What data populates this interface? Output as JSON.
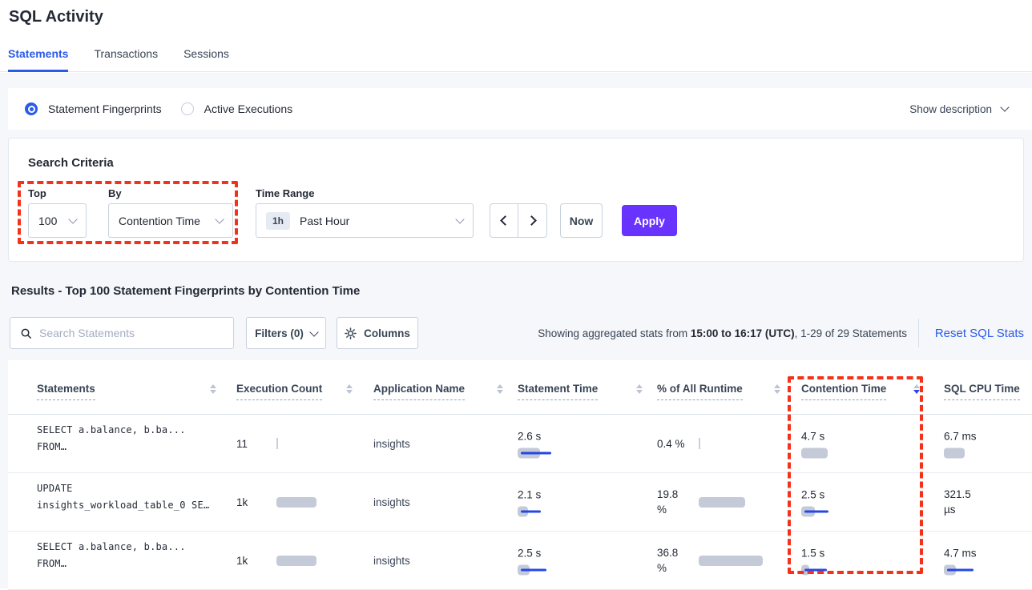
{
  "page": {
    "title": "SQL Activity"
  },
  "tabs": [
    {
      "label": "Statements",
      "active": true
    },
    {
      "label": "Transactions",
      "active": false
    },
    {
      "label": "Sessions",
      "active": false
    }
  ],
  "view_toggle": {
    "options": [
      {
        "label": "Statement Fingerprints",
        "selected": true
      },
      {
        "label": "Active Executions",
        "selected": false
      }
    ],
    "show_description": "Show description"
  },
  "search_criteria": {
    "title": "Search Criteria",
    "top": {
      "label": "Top",
      "value": "100"
    },
    "by": {
      "label": "By",
      "value": "Contention Time"
    },
    "time_range": {
      "label": "Time Range",
      "badge": "1h",
      "value": "Past Hour"
    },
    "now_label": "Now",
    "apply_label": "Apply"
  },
  "results": {
    "heading": "Results - Top 100 Statement Fingerprints by Contention Time",
    "search_placeholder": "Search Statements",
    "filters_label": "Filters (0)",
    "columns_label": "Columns",
    "stats": {
      "prefix": "Showing aggregated stats from ",
      "range": "15:00 to 16:17 (UTC)",
      "suffix": ", 1-29 of 29 Statements"
    },
    "reset_label": "Reset SQL Stats"
  },
  "table": {
    "headers": [
      {
        "label": "Statements",
        "sort": "none"
      },
      {
        "label": "Execution Count",
        "sort": "none"
      },
      {
        "label": "Application Name",
        "sort": "none"
      },
      {
        "label": "Statement Time",
        "sort": "none"
      },
      {
        "label": "% of All Runtime",
        "sort": "none"
      },
      {
        "label": "Contention Time",
        "sort": "desc"
      },
      {
        "label": "SQL CPU Time",
        "sort": null
      }
    ],
    "rows": [
      {
        "statement": [
          "SELECT a.balance, b.ba...",
          "FROM…"
        ],
        "exec_count": {
          "text": "11",
          "tick": true
        },
        "app_name": "insights",
        "statement_time": {
          "lines": [
            "2.6 s"
          ],
          "gray": 28,
          "blue": 38
        },
        "runtime_pct": {
          "lines": [
            "0.4 %"
          ],
          "tick": true
        },
        "contention_time": {
          "lines": [
            "4.7 s"
          ],
          "gray": 33,
          "blue": 0
        },
        "sql_cpu_time": {
          "lines": [
            "6.7 ms"
          ],
          "gray": 26,
          "blue": 0
        }
      },
      {
        "statement": [
          "UPDATE",
          "insights_workload_table_0 SE…"
        ],
        "exec_count": {
          "text": "1k",
          "gray": 50
        },
        "app_name": "insights",
        "statement_time": {
          "lines": [
            "2.1 s"
          ],
          "gray": 13,
          "blue": 25
        },
        "runtime_pct": {
          "lines": [
            "19.8",
            "%"
          ],
          "gray": 58
        },
        "contention_time": {
          "lines": [
            "2.5 s"
          ],
          "gray": 17,
          "blue": 30
        },
        "sql_cpu_time": {
          "lines": [
            "321.5",
            "µs"
          ],
          "blue_tick": true
        }
      },
      {
        "statement": [
          "SELECT a.balance, b.ba...",
          "FROM…"
        ],
        "exec_count": {
          "text": "1k",
          "gray": 50
        },
        "app_name": "insights",
        "statement_time": {
          "lines": [
            "2.5 s"
          ],
          "gray": 15,
          "blue": 32
        },
        "runtime_pct": {
          "lines": [
            "36.8",
            "%"
          ],
          "gray": 80
        },
        "contention_time": {
          "lines": [
            "1.5 s"
          ],
          "gray": 10,
          "blue": 28
        },
        "sql_cpu_time": {
          "lines": [
            "4.7 ms"
          ],
          "gray": 15,
          "blue": 33
        }
      }
    ]
  },
  "colors": {
    "accent_blue": "#2A5BE8",
    "apply_purple": "#6933FF",
    "annotation_red": "#F43219",
    "bar_gray": "#C4CAD8",
    "bar_blue": "#2547E8"
  }
}
